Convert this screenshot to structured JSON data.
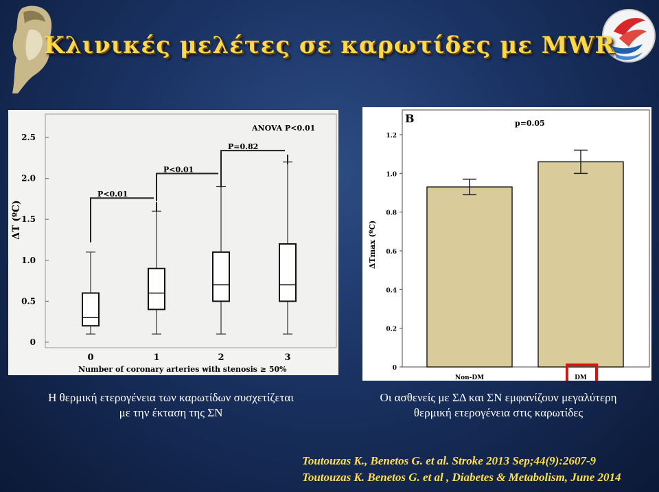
{
  "title": "Κλινικές μελέτες σε καρωτίδες με MWR",
  "caption_left": [
    "Η θερμική ετερογένεια των καρωτίδων συσχετίζεται",
    "με την έκταση της ΣΝ"
  ],
  "caption_right": [
    "Οι ασθενείς με ΣΔ και ΣΝ εμφανίζουν μεγαλύτερη",
    "θερμική ετερογένεια στις καρωτίδες"
  ],
  "references": [
    "Toutouzas K., Benetos G. et al. Stroke 2013 Sep;44(9):2607-9",
    "Toutouzas K. Benetos G. et al , Diabetes & Metabolism, June 2014"
  ],
  "chart_data": [
    {
      "type": "box",
      "xlabel": "Number of coronary arteries with stenosis ≥ 50%",
      "ylabel": "ΔT (ºC)",
      "ylim": [
        0,
        2.75
      ],
      "yticks": [
        0,
        0.5,
        1.0,
        1.5,
        2.0,
        2.5
      ],
      "ytick_labels": [
        "0",
        "0.5",
        "1.0",
        "1.5",
        "2.0",
        "2.5"
      ],
      "categories": [
        "0",
        "1",
        "2",
        "3"
      ],
      "boxes": [
        {
          "min": 0.1,
          "q1": 0.2,
          "median": 0.3,
          "q3": 0.6,
          "max": 1.1
        },
        {
          "min": 0.1,
          "q1": 0.4,
          "median": 0.6,
          "q3": 0.9,
          "max": 1.6
        },
        {
          "min": 0.1,
          "q1": 0.5,
          "median": 0.7,
          "q3": 1.1,
          "max": 1.9
        },
        {
          "min": 0.1,
          "q1": 0.5,
          "median": 0.7,
          "q3": 1.2,
          "max": 2.2
        }
      ],
      "annotations": [
        {
          "text": "ANOVA P<0.01"
        },
        {
          "text": "P<0.01",
          "between": [
            0,
            1
          ]
        },
        {
          "text": "P<0.01",
          "between": [
            1,
            2
          ]
        },
        {
          "text": "P=0.82",
          "between": [
            2,
            3
          ]
        }
      ]
    },
    {
      "type": "bar",
      "panel_label": "B",
      "ylabel": "ΔTmax (ºC)",
      "ylim": [
        0,
        1.3
      ],
      "yticks": [
        0,
        0.2,
        0.4,
        0.6,
        0.8,
        1.0,
        1.2
      ],
      "ytick_labels": [
        "0",
        "0.2",
        "0.4",
        "0.6",
        "0.8",
        "1.0",
        "1.2"
      ],
      "categories": [
        "Non-DM",
        "DM"
      ],
      "values": [
        0.93,
        1.06
      ],
      "errors": [
        0.04,
        0.06
      ],
      "annotation": "p=0.05",
      "bar_color": "#d9cc9a",
      "highlight_color": "#e01010"
    }
  ]
}
